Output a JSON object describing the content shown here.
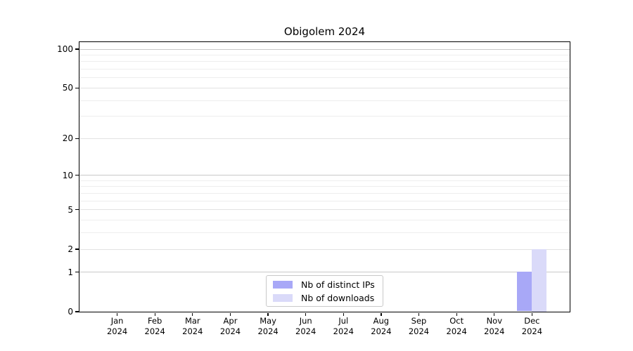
{
  "chart_data": {
    "type": "bar",
    "title": "Obigolem 2024",
    "categories": [
      {
        "month": "Jan",
        "year": "2024"
      },
      {
        "month": "Feb",
        "year": "2024"
      },
      {
        "month": "Mar",
        "year": "2024"
      },
      {
        "month": "Apr",
        "year": "2024"
      },
      {
        "month": "May",
        "year": "2024"
      },
      {
        "month": "Jun",
        "year": "2024"
      },
      {
        "month": "Jul",
        "year": "2024"
      },
      {
        "month": "Aug",
        "year": "2024"
      },
      {
        "month": "Sep",
        "year": "2024"
      },
      {
        "month": "Oct",
        "year": "2024"
      },
      {
        "month": "Nov",
        "year": "2024"
      },
      {
        "month": "Dec",
        "year": "2024"
      }
    ],
    "series": [
      {
        "name": "Nb of distinct IPs",
        "color": "#a8a8f7",
        "values": [
          0,
          0,
          0,
          0,
          0,
          0,
          0,
          0,
          0,
          0,
          0,
          1
        ]
      },
      {
        "name": "Nb of downloads",
        "color": "#dadaf9",
        "values": [
          0,
          0,
          0,
          0,
          0,
          0,
          0,
          0,
          0,
          0,
          0,
          2
        ]
      }
    ],
    "xlabel": "",
    "ylabel": "",
    "yscale": "log1p",
    "ylim": [
      0,
      113.2
    ],
    "yticks": [
      0,
      1,
      2,
      5,
      10,
      20,
      50,
      100
    ],
    "decade_yticks": [
      1,
      10,
      100
    ],
    "minor_yticks": [
      3,
      4,
      6,
      7,
      8,
      9,
      30,
      40,
      60,
      70,
      80,
      90
    ],
    "grid": "horizontal",
    "legend_position": "lower center",
    "colors": {
      "grid_decade": "#c8c8c8",
      "grid_labeled": "#e2e2e2",
      "grid_minor": "#eeeeee",
      "spine": "#000000",
      "background": "#ffffff"
    }
  }
}
